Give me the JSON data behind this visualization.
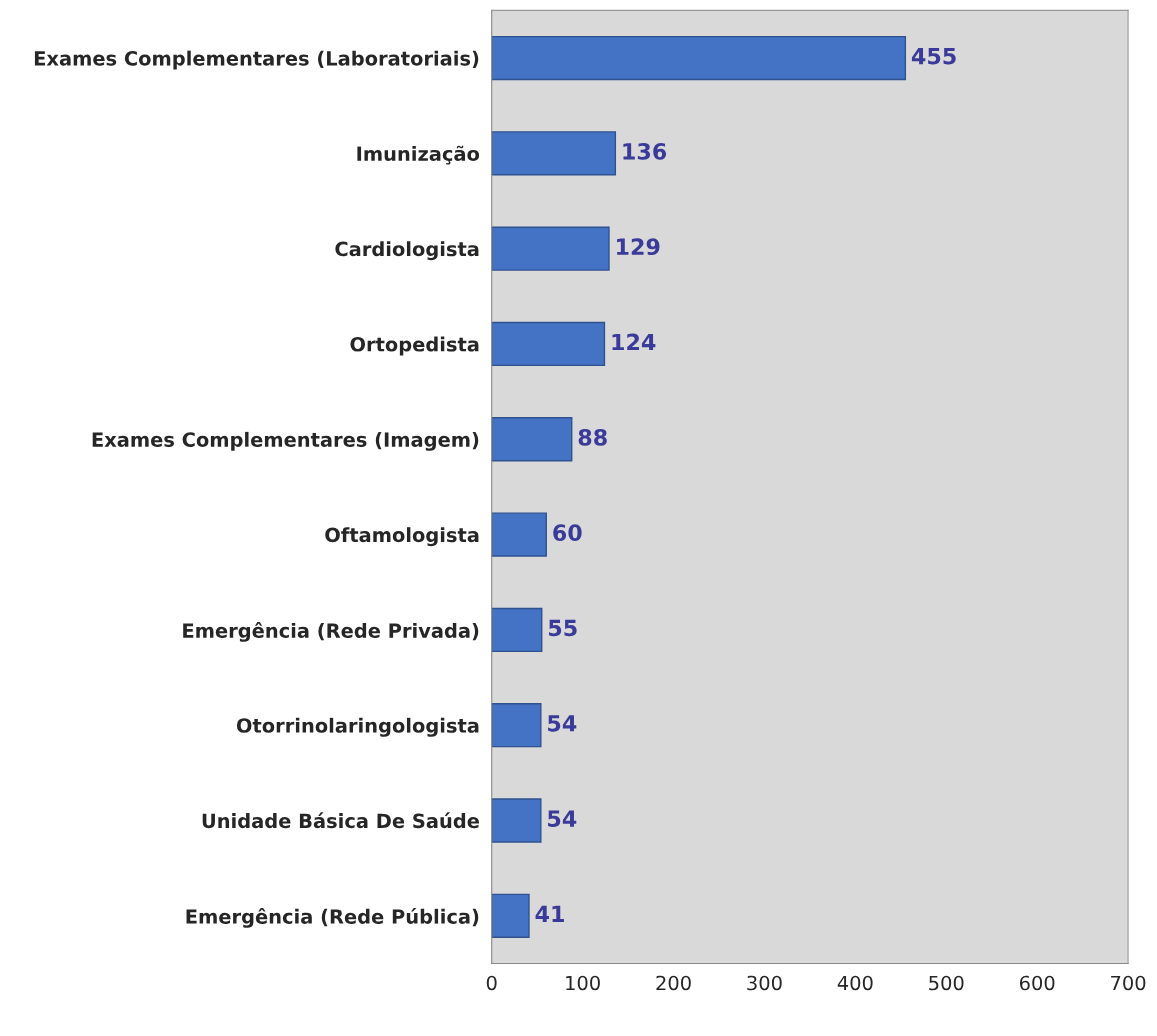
{
  "chart_data": {
    "type": "bar",
    "orientation": "horizontal",
    "categories": [
      "Exames Complementares (Laboratoriais)",
      "Imunização",
      "Cardiologista",
      "Ortopedista",
      "Exames Complementares (Imagem)",
      "Oftamologista",
      "Emergência (Rede Privada)",
      "Otorrinolaringologista",
      "Unidade Básica De Saúde",
      "Emergência (Rede Pública)"
    ],
    "values": [
      455,
      136,
      129,
      124,
      88,
      60,
      55,
      54,
      54,
      41
    ],
    "color": "#4472c4",
    "xlim": [
      0,
      700
    ],
    "xticks": [
      0,
      100,
      200,
      300,
      400,
      500,
      600,
      700
    ],
    "data_labels": true,
    "grid": false,
    "legend": false
  }
}
